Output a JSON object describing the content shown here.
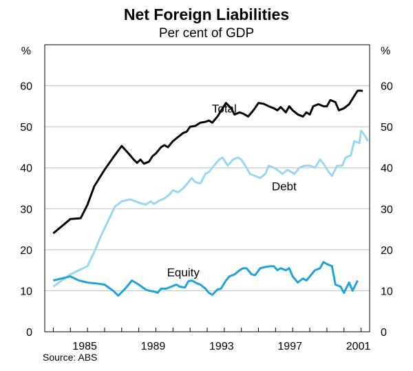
{
  "chart_data": {
    "type": "line",
    "title": "Net Foreign Liabilities",
    "subtitle": "Per cent of GDP",
    "ylabel_left": "%",
    "ylabel_right": "%",
    "source": "Source: ABS",
    "ylim": [
      0,
      70
    ],
    "xlim": [
      1982.5,
      2001.5
    ],
    "yticks": [
      "0",
      "10",
      "20",
      "30",
      "40",
      "50",
      "60"
    ],
    "xtick_labels": [
      {
        "year": 1985,
        "label": "1985"
      },
      {
        "year": 1989,
        "label": "1989"
      },
      {
        "year": 1993,
        "label": "1993"
      },
      {
        "year": 1997,
        "label": "1997"
      },
      {
        "year": 2001,
        "label": "2001"
      }
    ],
    "grid": "horizontal",
    "series": [
      {
        "name": "Total",
        "color": "#000000",
        "label_at": [
          1993.0,
          53.5
        ],
        "points": [
          [
            1983.0,
            24.0
          ],
          [
            1984.0,
            27.5
          ],
          [
            1984.6,
            27.7
          ],
          [
            1985.0,
            31.0
          ],
          [
            1985.4,
            35.5
          ],
          [
            1986.0,
            39.5
          ],
          [
            1986.5,
            42.5
          ],
          [
            1987.0,
            45.3
          ],
          [
            1987.4,
            43.5
          ],
          [
            1987.7,
            42.0
          ],
          [
            1987.9,
            41.2
          ],
          [
            1988.1,
            42.0
          ],
          [
            1988.3,
            41.0
          ],
          [
            1988.6,
            41.5
          ],
          [
            1988.8,
            42.8
          ],
          [
            1989.0,
            43.5
          ],
          [
            1989.3,
            45.0
          ],
          [
            1989.5,
            45.5
          ],
          [
            1989.7,
            45.0
          ],
          [
            1990.0,
            46.5
          ],
          [
            1990.3,
            47.5
          ],
          [
            1990.6,
            48.5
          ],
          [
            1990.8,
            48.8
          ],
          [
            1991.0,
            50.0
          ],
          [
            1991.3,
            50.2
          ],
          [
            1991.6,
            51.0
          ],
          [
            1991.9,
            51.2
          ],
          [
            1992.1,
            51.5
          ],
          [
            1992.3,
            51.0
          ],
          [
            1992.6,
            52.5
          ],
          [
            1992.9,
            54.5
          ],
          [
            1993.1,
            55.8
          ],
          [
            1993.4,
            54.5
          ],
          [
            1993.6,
            53.0
          ],
          [
            1993.9,
            53.5
          ],
          [
            1994.1,
            53.2
          ],
          [
            1994.4,
            52.5
          ],
          [
            1994.7,
            54.0
          ],
          [
            1995.0,
            55.8
          ],
          [
            1995.3,
            55.6
          ],
          [
            1995.6,
            55.0
          ],
          [
            1995.9,
            54.5
          ],
          [
            1996.1,
            54.0
          ],
          [
            1996.3,
            54.8
          ],
          [
            1996.6,
            53.5
          ],
          [
            1996.8,
            55.0
          ],
          [
            1997.0,
            54.0
          ],
          [
            1997.3,
            53.0
          ],
          [
            1997.6,
            52.5
          ],
          [
            1997.8,
            53.5
          ],
          [
            1998.0,
            53.0
          ],
          [
            1998.2,
            55.0
          ],
          [
            1998.5,
            55.5
          ],
          [
            1998.8,
            55.0
          ],
          [
            1999.0,
            55.0
          ],
          [
            1999.2,
            56.5
          ],
          [
            1999.5,
            56.0
          ],
          [
            1999.7,
            54.0
          ],
          [
            2000.0,
            54.5
          ],
          [
            2000.3,
            55.5
          ],
          [
            2000.6,
            57.5
          ],
          [
            2000.8,
            58.8
          ],
          [
            2001.0,
            58.8
          ],
          [
            2001.1,
            58.7
          ]
        ]
      },
      {
        "name": "Debt",
        "color": "#99d6f2",
        "label_at": [
          1996.5,
          34.5
        ],
        "points": [
          [
            1983.0,
            11.0
          ],
          [
            1983.5,
            12.5
          ],
          [
            1984.0,
            14.0
          ],
          [
            1984.5,
            15.0
          ],
          [
            1985.0,
            16.0
          ],
          [
            1985.4,
            19.5
          ],
          [
            1985.8,
            23.5
          ],
          [
            1986.2,
            27.0
          ],
          [
            1986.6,
            30.5
          ],
          [
            1987.0,
            31.8
          ],
          [
            1987.5,
            32.3
          ],
          [
            1988.0,
            31.5
          ],
          [
            1988.4,
            31.0
          ],
          [
            1988.7,
            31.8
          ],
          [
            1988.9,
            31.2
          ],
          [
            1989.2,
            32.0
          ],
          [
            1989.5,
            32.5
          ],
          [
            1989.8,
            33.5
          ],
          [
            1990.0,
            34.5
          ],
          [
            1990.3,
            34.0
          ],
          [
            1990.6,
            35.0
          ],
          [
            1990.9,
            36.5
          ],
          [
            1991.1,
            37.5
          ],
          [
            1991.3,
            36.5
          ],
          [
            1991.6,
            36.2
          ],
          [
            1991.9,
            38.5
          ],
          [
            1992.1,
            39.0
          ],
          [
            1992.4,
            40.5
          ],
          [
            1992.7,
            42.0
          ],
          [
            1992.9,
            42.5
          ],
          [
            1993.2,
            40.5
          ],
          [
            1993.5,
            42.0
          ],
          [
            1993.8,
            42.5
          ],
          [
            1994.0,
            42.0
          ],
          [
            1994.3,
            40.0
          ],
          [
            1994.5,
            38.5
          ],
          [
            1994.8,
            38.0
          ],
          [
            1995.1,
            37.5
          ],
          [
            1995.4,
            38.5
          ],
          [
            1995.6,
            40.5
          ],
          [
            1995.9,
            40.0
          ],
          [
            1996.1,
            39.5
          ],
          [
            1996.4,
            38.5
          ],
          [
            1996.7,
            39.5
          ],
          [
            1996.9,
            39.0
          ],
          [
            1997.1,
            38.5
          ],
          [
            1997.4,
            40.0
          ],
          [
            1997.7,
            40.5
          ],
          [
            1998.0,
            40.5
          ],
          [
            1998.3,
            40.0
          ],
          [
            1998.6,
            42.0
          ],
          [
            1998.8,
            41.0
          ],
          [
            1999.1,
            39.0
          ],
          [
            1999.3,
            38.0
          ],
          [
            1999.6,
            40.5
          ],
          [
            1999.9,
            40.5
          ],
          [
            2000.1,
            42.5
          ],
          [
            2000.4,
            43.0
          ],
          [
            2000.6,
            46.5
          ],
          [
            2000.9,
            46.0
          ],
          [
            2001.0,
            49.0
          ],
          [
            2001.2,
            48.0
          ],
          [
            2001.4,
            46.5
          ]
        ]
      },
      {
        "name": "Equity",
        "color": "#1fa3d9",
        "label_at": [
          1990.6,
          13.5
        ],
        "points": [
          [
            1983.0,
            12.5
          ],
          [
            1983.5,
            13.0
          ],
          [
            1984.0,
            13.5
          ],
          [
            1984.5,
            12.5
          ],
          [
            1985.0,
            12.0
          ],
          [
            1985.5,
            11.8
          ],
          [
            1986.0,
            11.5
          ],
          [
            1986.5,
            10.0
          ],
          [
            1986.8,
            8.8
          ],
          [
            1987.2,
            10.5
          ],
          [
            1987.6,
            12.5
          ],
          [
            1988.0,
            11.5
          ],
          [
            1988.4,
            10.3
          ],
          [
            1988.6,
            10.0
          ],
          [
            1988.9,
            9.8
          ],
          [
            1989.1,
            9.5
          ],
          [
            1989.3,
            10.5
          ],
          [
            1989.6,
            10.5
          ],
          [
            1989.9,
            11.0
          ],
          [
            1990.2,
            11.5
          ],
          [
            1990.4,
            11.0
          ],
          [
            1990.7,
            10.8
          ],
          [
            1990.9,
            12.3
          ],
          [
            1991.1,
            12.5
          ],
          [
            1991.4,
            11.8
          ],
          [
            1991.6,
            11.5
          ],
          [
            1991.9,
            10.5
          ],
          [
            1992.1,
            9.5
          ],
          [
            1992.3,
            9.0
          ],
          [
            1992.6,
            10.3
          ],
          [
            1992.8,
            10.5
          ],
          [
            1993.1,
            12.5
          ],
          [
            1993.3,
            13.5
          ],
          [
            1993.6,
            14.0
          ],
          [
            1993.9,
            15.0
          ],
          [
            1994.1,
            15.5
          ],
          [
            1994.3,
            15.5
          ],
          [
            1994.6,
            14.0
          ],
          [
            1994.8,
            13.8
          ],
          [
            1995.1,
            15.5
          ],
          [
            1995.4,
            15.8
          ],
          [
            1995.7,
            16.0
          ],
          [
            1995.9,
            16.0
          ],
          [
            1996.1,
            15.0
          ],
          [
            1996.3,
            15.5
          ],
          [
            1996.6,
            15.0
          ],
          [
            1996.8,
            15.5
          ],
          [
            1997.0,
            13.5
          ],
          [
            1997.3,
            12.0
          ],
          [
            1997.6,
            13.0
          ],
          [
            1997.8,
            12.5
          ],
          [
            1998.0,
            13.5
          ],
          [
            1998.3,
            15.0
          ],
          [
            1998.6,
            15.5
          ],
          [
            1998.8,
            17.0
          ],
          [
            1999.0,
            16.5
          ],
          [
            1999.3,
            16.0
          ],
          [
            1999.5,
            11.5
          ],
          [
            1999.8,
            11.0
          ],
          [
            2000.0,
            9.5
          ],
          [
            2000.3,
            12.0
          ],
          [
            2000.5,
            10.0
          ],
          [
            2000.8,
            12.5
          ]
        ]
      }
    ]
  }
}
